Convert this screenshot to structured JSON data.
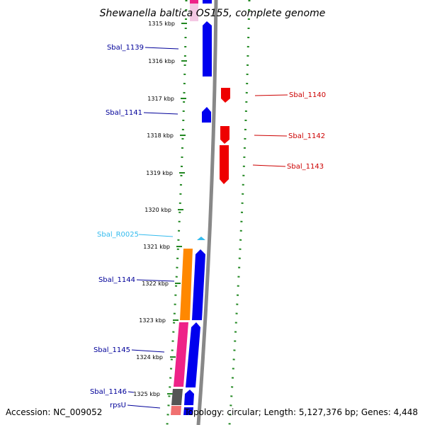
{
  "title": "Shewanella baltica OS155, complete genome",
  "footer": {
    "accession": "Accession: NC_009052",
    "summary": "Topology: circular; Length: 5,127,376 bp; Genes: 4,448"
  },
  "colors": {
    "forward_cds": "#0000ee",
    "reverse_cds": "#ee0000",
    "rna": "#33bbee",
    "orange_feature": "#ff8800",
    "pink_feature": "#ee2288",
    "grey_feature": "#555555",
    "backbone": "#888888",
    "dotted_track": "#228822",
    "left_label": "#000099",
    "right_label": "#cc0000"
  },
  "ticks": [
    {
      "label": "1315 kbp"
    },
    {
      "label": "1316 kbp"
    },
    {
      "label": "1317 kbp"
    },
    {
      "label": "1318 kbp"
    },
    {
      "label": "1319 kbp"
    },
    {
      "label": "1320 kbp"
    },
    {
      "label": "1321 kbp"
    },
    {
      "label": "1322 kbp"
    },
    {
      "label": "1323 kbp"
    },
    {
      "label": "1324 kbp"
    },
    {
      "label": "1325 kbp"
    }
  ],
  "genes": [
    {
      "name": "Sbal_1139",
      "strand": "+"
    },
    {
      "name": "Sbal_1140",
      "strand": "-"
    },
    {
      "name": "Sbal_1141",
      "strand": "+"
    },
    {
      "name": "Sbal_1142",
      "strand": "-"
    },
    {
      "name": "Sbal_1143",
      "strand": "-"
    },
    {
      "name": "Sbal_R0025",
      "strand": "+"
    },
    {
      "name": "Sbal_1144",
      "strand": "+"
    },
    {
      "name": "Sbal_1145",
      "strand": "+"
    },
    {
      "name": "Sbal_1146",
      "strand": "+"
    },
    {
      "name": "rpsU",
      "strand": "+"
    }
  ]
}
